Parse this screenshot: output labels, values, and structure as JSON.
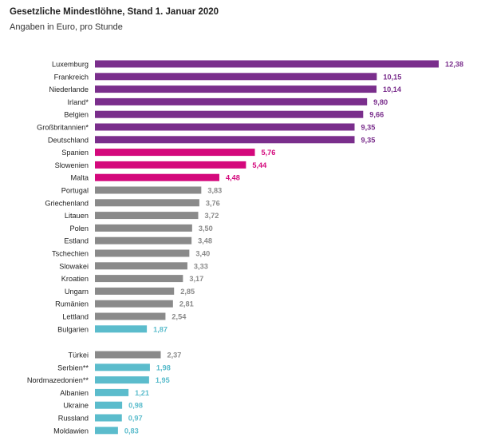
{
  "chart_data": {
    "type": "bar",
    "orientation": "horizontal",
    "title": "Gesetzliche Mindestlöhne, Stand 1. Januar 2020",
    "subtitle": "Angaben in Euro, pro Stunde",
    "groups": [
      {
        "items": [
          {
            "label": "Luxemburg",
            "value": 12.38,
            "value_label": "12,38",
            "color": "#7a2e8c"
          },
          {
            "label": "Frankreich",
            "value": 10.15,
            "value_label": "10,15",
            "color": "#7a2e8c"
          },
          {
            "label": "Niederlande",
            "value": 10.14,
            "value_label": "10,14",
            "color": "#7a2e8c"
          },
          {
            "label": "Irland*",
            "value": 9.8,
            "value_label": "9,80",
            "color": "#7a2e8c"
          },
          {
            "label": "Belgien",
            "value": 9.66,
            "value_label": "9,66",
            "color": "#7a2e8c"
          },
          {
            "label": "Großbritannien*",
            "value": 9.35,
            "value_label": "9,35",
            "color": "#7a2e8c"
          },
          {
            "label": "Deutschland",
            "value": 9.35,
            "value_label": "9,35",
            "color": "#7a2e8c"
          },
          {
            "label": "Spanien",
            "value": 5.76,
            "value_label": "5,76",
            "color": "#d4087c"
          },
          {
            "label": "Slowenien",
            "value": 5.44,
            "value_label": "5,44",
            "color": "#d4087c"
          },
          {
            "label": "Malta",
            "value": 4.48,
            "value_label": "4,48",
            "color": "#d4087c"
          },
          {
            "label": "Portugal",
            "value": 3.83,
            "value_label": "3,83",
            "color": "#8a8a8a"
          },
          {
            "label": "Griechenland",
            "value": 3.76,
            "value_label": "3,76",
            "color": "#8a8a8a"
          },
          {
            "label": "Litauen",
            "value": 3.72,
            "value_label": "3,72",
            "color": "#8a8a8a"
          },
          {
            "label": "Polen",
            "value": 3.5,
            "value_label": "3,50",
            "color": "#8a8a8a"
          },
          {
            "label": "Estland",
            "value": 3.48,
            "value_label": "3,48",
            "color": "#8a8a8a"
          },
          {
            "label": "Tschechien",
            "value": 3.4,
            "value_label": "3,40",
            "color": "#8a8a8a"
          },
          {
            "label": "Slowakei",
            "value": 3.33,
            "value_label": "3,33",
            "color": "#8a8a8a"
          },
          {
            "label": "Kroatien",
            "value": 3.17,
            "value_label": "3,17",
            "color": "#8a8a8a"
          },
          {
            "label": "Ungarn",
            "value": 2.85,
            "value_label": "2,85",
            "color": "#8a8a8a"
          },
          {
            "label": "Rumänien",
            "value": 2.81,
            "value_label": "2,81",
            "color": "#8a8a8a"
          },
          {
            "label": "Lettland",
            "value": 2.54,
            "value_label": "2,54",
            "color": "#8a8a8a"
          },
          {
            "label": "Bulgarien",
            "value": 1.87,
            "value_label": "1,87",
            "color": "#5bbccc"
          }
        ]
      },
      {
        "items": [
          {
            "label": "Türkei",
            "value": 2.37,
            "value_label": "2,37",
            "color": "#8a8a8a"
          },
          {
            "label": "Serbien**",
            "value": 1.98,
            "value_label": "1,98",
            "color": "#5bbccc"
          },
          {
            "label": "Nordmazedonien**",
            "value": 1.95,
            "value_label": "1,95",
            "color": "#5bbccc"
          },
          {
            "label": "Albanien",
            "value": 1.21,
            "value_label": "1,21",
            "color": "#5bbccc"
          },
          {
            "label": "Ukraine",
            "value": 0.98,
            "value_label": "0,98",
            "color": "#5bbccc"
          },
          {
            "label": "Russland",
            "value": 0.97,
            "value_label": "0,97",
            "color": "#5bbccc"
          },
          {
            "label": "Moldawien",
            "value": 0.83,
            "value_label": "0,83",
            "color": "#5bbccc"
          }
        ]
      }
    ],
    "xlim": [
      0,
      12.38
    ],
    "grid": false,
    "legend": "none"
  }
}
